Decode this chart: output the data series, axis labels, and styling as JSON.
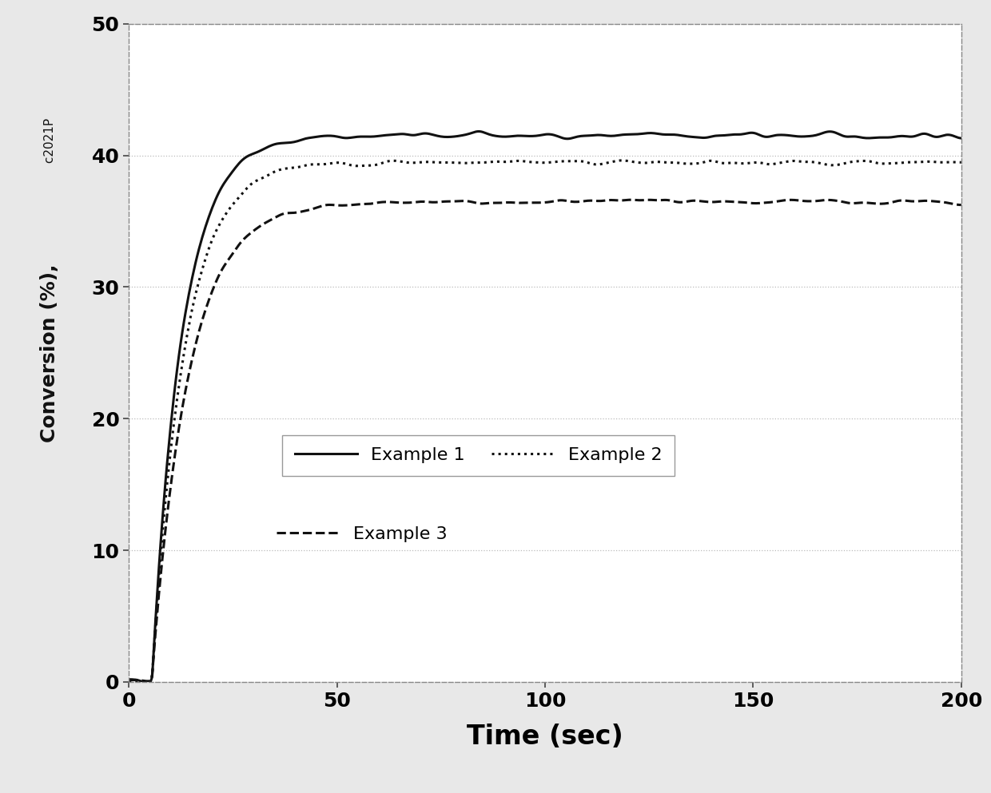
{
  "title": "",
  "xlabel": "Time (sec)",
  "ylabel_main": "Conversion (%),",
  "ylabel_super": " c2021P",
  "xlim": [
    0,
    200
  ],
  "ylim": [
    0,
    50
  ],
  "xticks": [
    0,
    50,
    100,
    150,
    200
  ],
  "yticks": [
    0,
    10,
    20,
    30,
    40,
    50
  ],
  "xlabel_fontsize": 24,
  "ylabel_fontsize": 18,
  "ylabel_super_fontsize": 11,
  "tick_fontsize": 18,
  "legend_fontsize": 16,
  "outer_bg": "#e8e8e8",
  "inner_bg": "#ffffff",
  "grid_color": "#bbbbbb",
  "line_color": "#111111",
  "series": [
    {
      "label": "Example 1",
      "linestyle": "solid",
      "linewidth": 2.2,
      "color": "#111111",
      "asymptote": 41.5,
      "k": 0.14,
      "t_shift": 5.5,
      "noise_seed": 42,
      "noise_amp": 0.45
    },
    {
      "label": "Example 2",
      "linestyle": "dotted",
      "linewidth": 2.2,
      "color": "#111111",
      "asymptote": 39.5,
      "k": 0.13,
      "t_shift": 5.5,
      "noise_seed": 7,
      "noise_amp": 0.35
    },
    {
      "label": "Example 3",
      "linestyle": "dashed",
      "linewidth": 2.2,
      "color": "#111111",
      "asymptote": 36.5,
      "k": 0.115,
      "t_shift": 5.5,
      "noise_seed": 13,
      "noise_amp": 0.35
    }
  ]
}
